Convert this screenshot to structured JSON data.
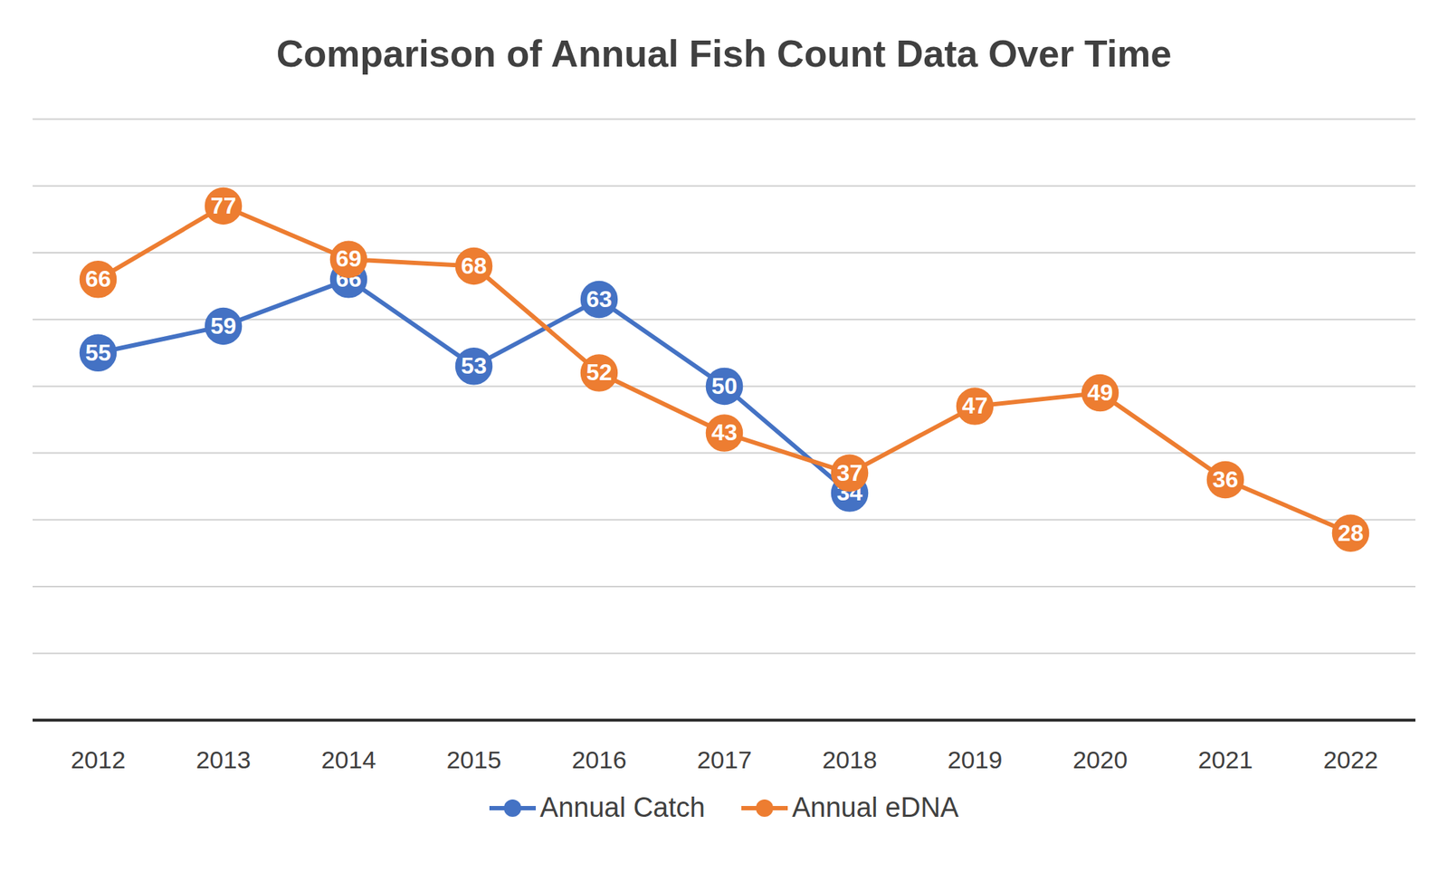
{
  "chart_data": {
    "type": "line",
    "title": "Comparison of Annual Fish Count Data Over Time",
    "x": [
      2012,
      2013,
      2014,
      2015,
      2016,
      2017,
      2018,
      2019,
      2020,
      2021,
      2022
    ],
    "series": [
      {
        "name": "Annual Catch",
        "color": "#4472c4",
        "values": [
          55,
          59,
          66,
          53,
          63,
          50,
          34,
          null,
          null,
          null,
          null
        ]
      },
      {
        "name": "Annual eDNA",
        "color": "#ed7d31",
        "values": [
          66,
          77,
          69,
          68,
          52,
          43,
          37,
          47,
          49,
          36,
          28
        ]
      }
    ],
    "ylim": [
      0,
      90
    ],
    "yticks": [
      0,
      10,
      20,
      30,
      40,
      50,
      60,
      70,
      80,
      90
    ],
    "grid": true,
    "legend": "bottom",
    "data_labels": true,
    "tick_labels": "x",
    "marker": "circle",
    "line_style": "solid"
  }
}
